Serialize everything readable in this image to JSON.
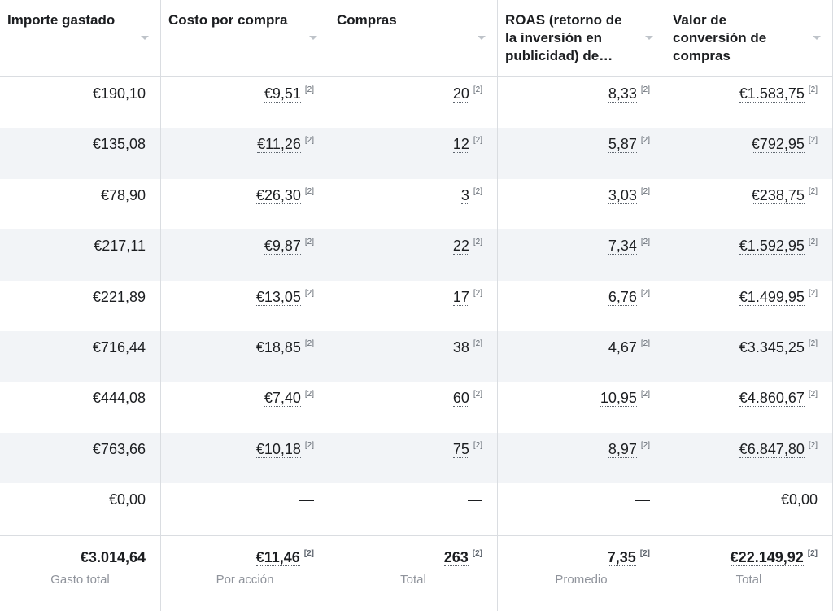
{
  "table": {
    "headers": [
      "Importe gastado",
      "Costo por compra",
      "Compras",
      "ROAS (retorno de la inversión en publicidad) de…",
      "Valor de conversión de compras"
    ],
    "rows": [
      [
        {
          "value": "€190,10"
        },
        {
          "value": "€9,51",
          "note": "[2]"
        },
        {
          "value": "20",
          "note": "[2]"
        },
        {
          "value": "8,33",
          "note": "[2]"
        },
        {
          "value": "€1.583,75",
          "note": "[2]"
        }
      ],
      [
        {
          "value": "€135,08"
        },
        {
          "value": "€11,26",
          "note": "[2]"
        },
        {
          "value": "12",
          "note": "[2]"
        },
        {
          "value": "5,87",
          "note": "[2]"
        },
        {
          "value": "€792,95",
          "note": "[2]"
        }
      ],
      [
        {
          "value": "€78,90"
        },
        {
          "value": "€26,30",
          "note": "[2]"
        },
        {
          "value": "3",
          "note": "[2]"
        },
        {
          "value": "3,03",
          "note": "[2]"
        },
        {
          "value": "€238,75",
          "note": "[2]"
        }
      ],
      [
        {
          "value": "€217,11"
        },
        {
          "value": "€9,87",
          "note": "[2]"
        },
        {
          "value": "22",
          "note": "[2]"
        },
        {
          "value": "7,34",
          "note": "[2]"
        },
        {
          "value": "€1.592,95",
          "note": "[2]"
        }
      ],
      [
        {
          "value": "€221,89"
        },
        {
          "value": "€13,05",
          "note": "[2]"
        },
        {
          "value": "17",
          "note": "[2]"
        },
        {
          "value": "6,76",
          "note": "[2]"
        },
        {
          "value": "€1.499,95",
          "note": "[2]"
        }
      ],
      [
        {
          "value": "€716,44"
        },
        {
          "value": "€18,85",
          "note": "[2]"
        },
        {
          "value": "38",
          "note": "[2]"
        },
        {
          "value": "4,67",
          "note": "[2]"
        },
        {
          "value": "€3.345,25",
          "note": "[2]"
        }
      ],
      [
        {
          "value": "€444,08"
        },
        {
          "value": "€7,40",
          "note": "[2]"
        },
        {
          "value": "60",
          "note": "[2]"
        },
        {
          "value": "10,95",
          "note": "[2]"
        },
        {
          "value": "€4.860,67",
          "note": "[2]"
        }
      ],
      [
        {
          "value": "€763,66"
        },
        {
          "value": "€10,18",
          "note": "[2]"
        },
        {
          "value": "75",
          "note": "[2]"
        },
        {
          "value": "8,97",
          "note": "[2]"
        },
        {
          "value": "€6.847,80",
          "note": "[2]"
        }
      ],
      [
        {
          "value": "€0,00"
        },
        {
          "value": "—"
        },
        {
          "value": "—"
        },
        {
          "value": "—"
        },
        {
          "value": "€0,00"
        }
      ]
    ],
    "totals": [
      {
        "value": "€3.014,64",
        "label": "Gasto total"
      },
      {
        "value": "€11,46",
        "note": "[2]",
        "label": "Por acción"
      },
      {
        "value": "263",
        "note": "[2]",
        "label": "Total"
      },
      {
        "value": "7,35",
        "note": "[2]",
        "label": "Promedio"
      },
      {
        "value": "€22.149,92",
        "note": "[2]",
        "label": "Total"
      }
    ]
  }
}
